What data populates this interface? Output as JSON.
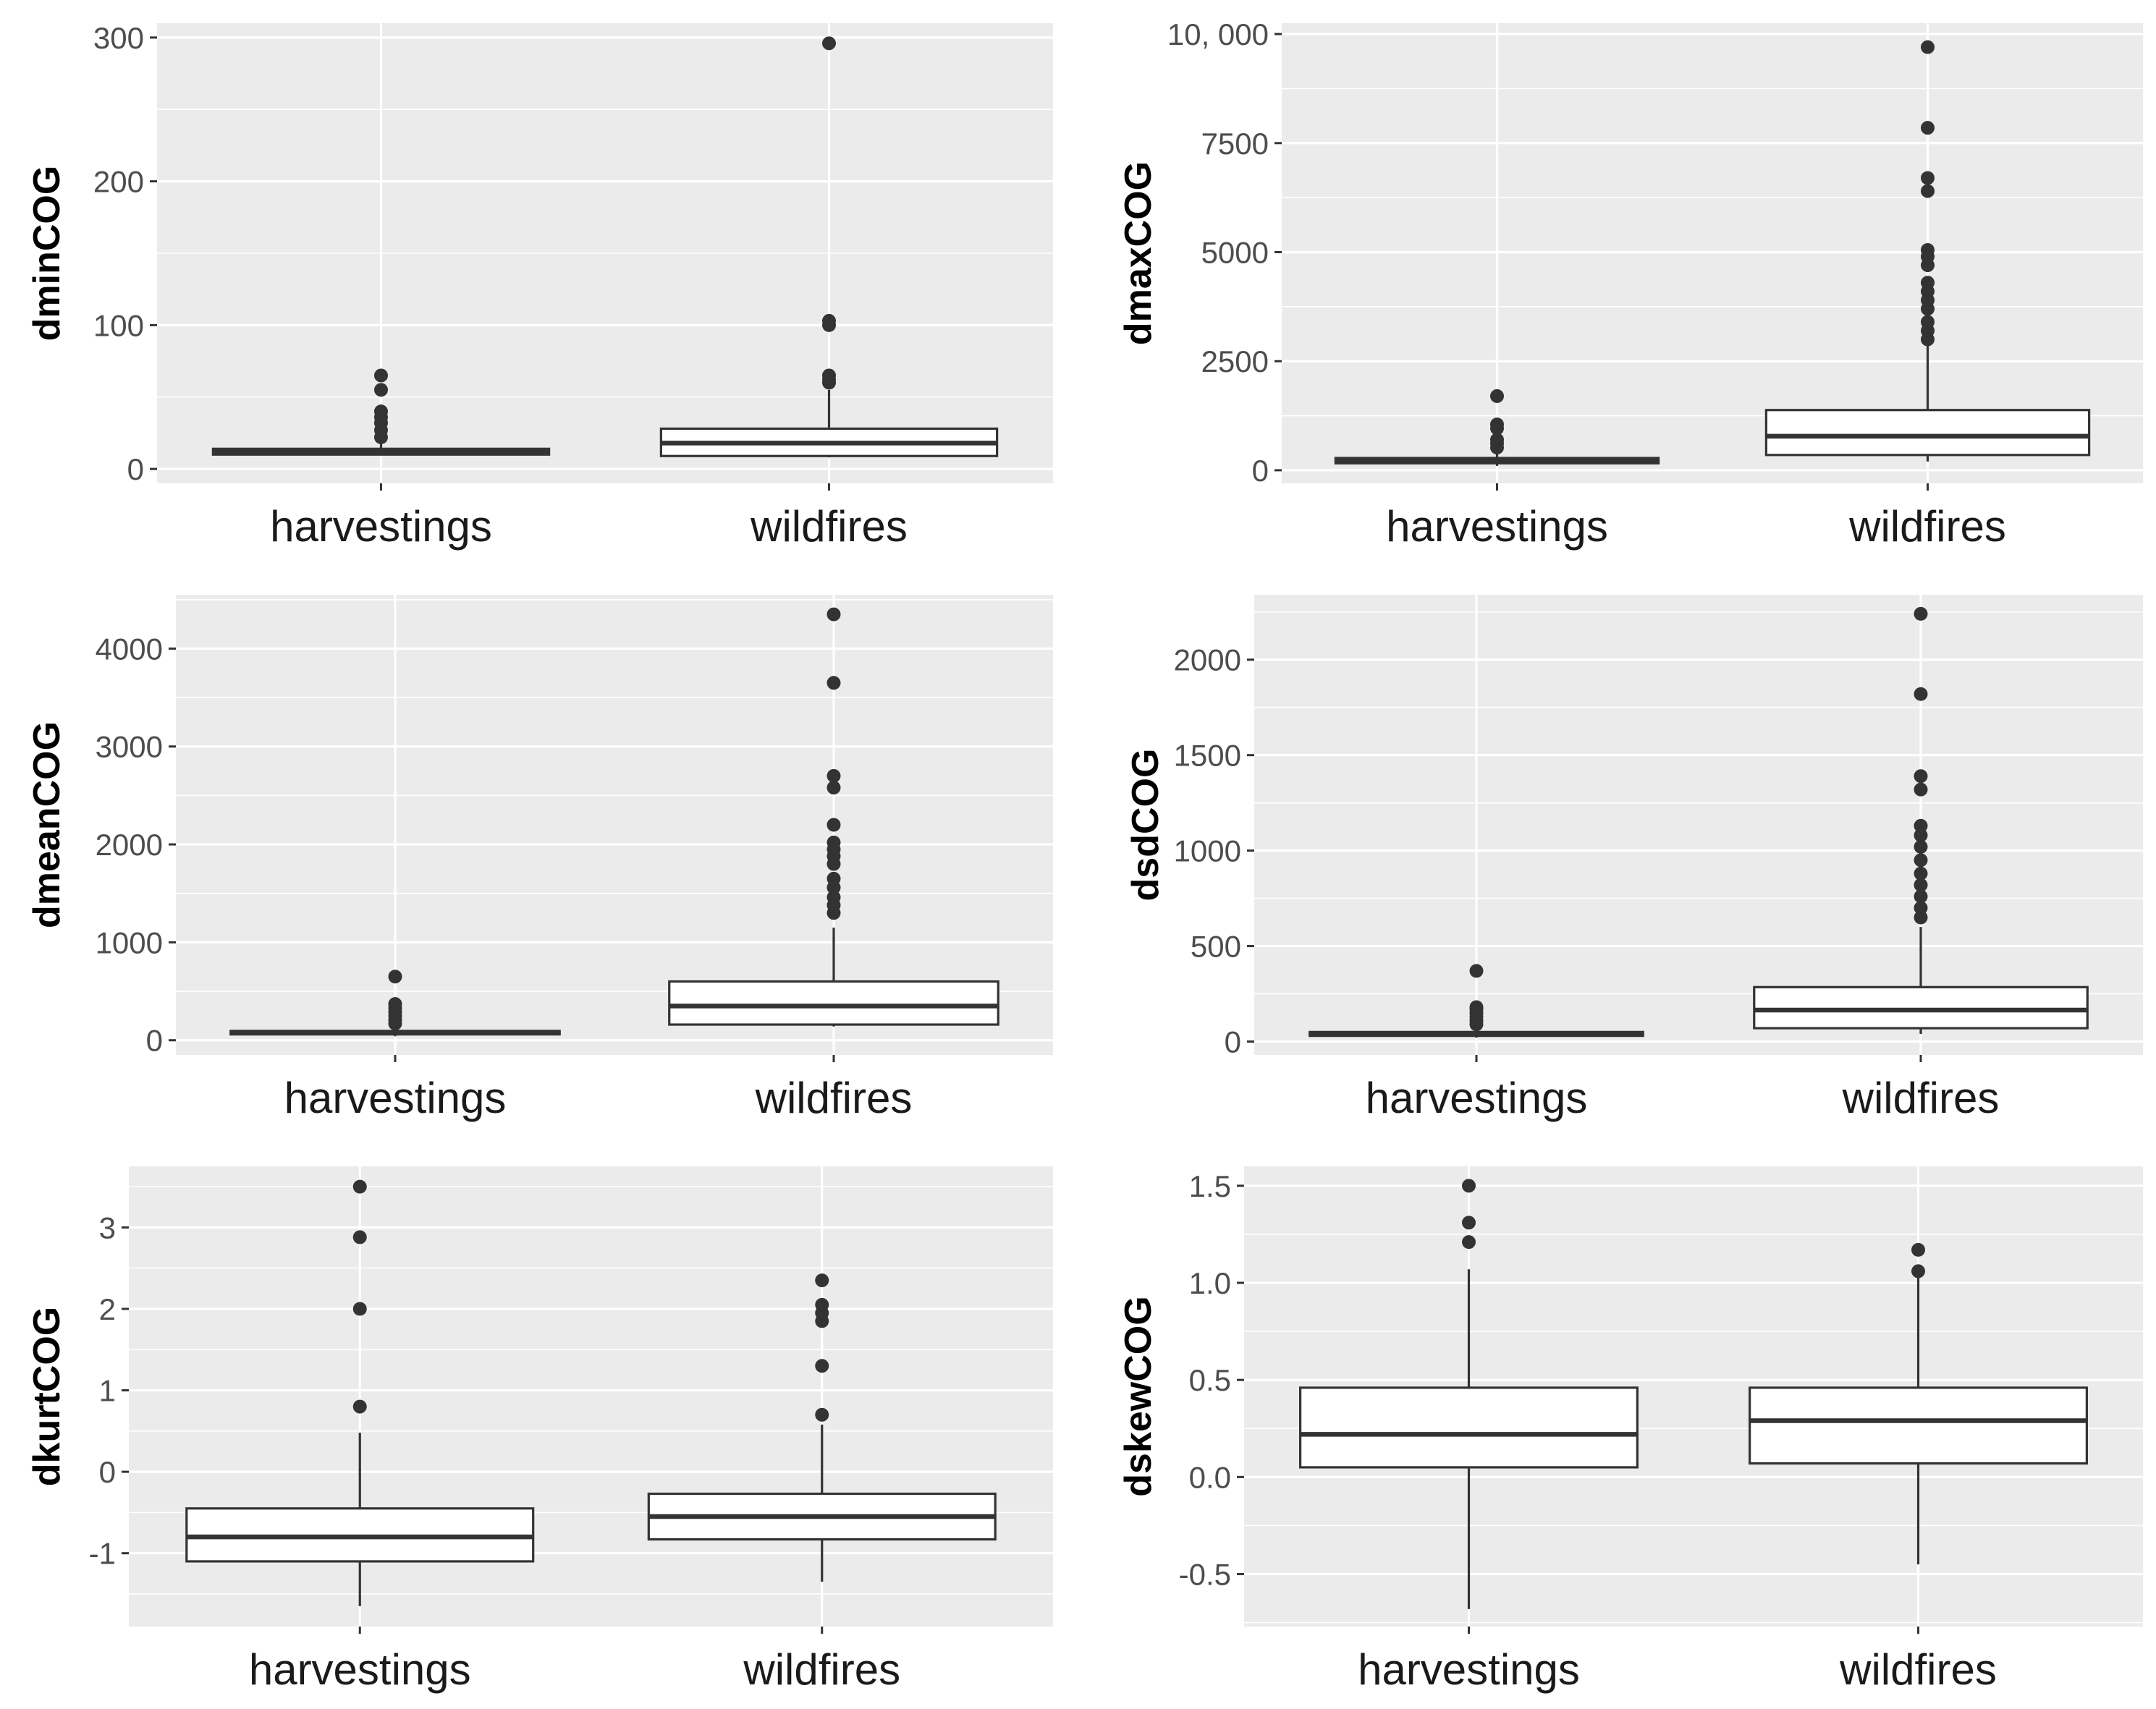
{
  "colors": {
    "panel_background": "#ebebeb",
    "grid_major": "#ffffff",
    "box_fill": "#ffffff",
    "box_stroke": "#333333",
    "outlier": "#333333"
  },
  "chart_data": [
    {
      "type": "boxplot",
      "ylabel": "dminCOG",
      "categories": [
        "harvestings",
        "wildfires"
      ],
      "yticks": [
        0,
        100,
        200,
        300
      ],
      "ytick_labels": [
        "0",
        "100",
        "200",
        "300"
      ],
      "ylim": [
        -10,
        310
      ],
      "grid": true,
      "boxes": [
        {
          "category": "harvestings",
          "min": 10,
          "q1": 10,
          "median": 12,
          "q3": 14,
          "max": 18,
          "outliers": [
            22,
            27,
            32,
            36,
            40,
            55,
            65
          ]
        },
        {
          "category": "wildfires",
          "min": 8,
          "q1": 9,
          "median": 18,
          "q3": 28,
          "max": 55,
          "outliers": [
            60,
            62,
            65,
            100,
            103,
            296
          ]
        }
      ]
    },
    {
      "type": "boxplot",
      "ylabel": "dmaxCOG",
      "categories": [
        "harvestings",
        "wildfires"
      ],
      "yticks": [
        0,
        2500,
        5000,
        7500,
        10000
      ],
      "ytick_labels": [
        "0",
        "2500",
        "5000",
        "7500",
        "10, 000"
      ],
      "ylim": [
        -300,
        10250
      ],
      "grid": true,
      "boxes": [
        {
          "category": "harvestings",
          "min": 100,
          "q1": 160,
          "median": 220,
          "q3": 280,
          "max": 430,
          "outliers": [
            520,
            620,
            700,
            960,
            1050,
            1700
          ]
        },
        {
          "category": "wildfires",
          "min": 200,
          "q1": 350,
          "median": 780,
          "q3": 1380,
          "max": 2900,
          "outliers": [
            3000,
            3200,
            3400,
            3700,
            3900,
            4100,
            4300,
            4700,
            4900,
            5050,
            6400,
            6700,
            7850,
            9700
          ]
        }
      ]
    },
    {
      "type": "boxplot",
      "ylabel": "dmeanCOG",
      "categories": [
        "harvestings",
        "wildfires"
      ],
      "yticks": [
        0,
        1000,
        2000,
        3000,
        4000
      ],
      "ytick_labels": [
        "0",
        "1000",
        "2000",
        "3000",
        "4000"
      ],
      "ylim": [
        -150,
        4550
      ],
      "grid": true,
      "boxes": [
        {
          "category": "harvestings",
          "min": 40,
          "q1": 60,
          "median": 75,
          "q3": 95,
          "max": 140,
          "outliers": [
            170,
            210,
            250,
            290,
            330,
            370,
            650
          ]
        },
        {
          "category": "wildfires",
          "min": 140,
          "q1": 160,
          "median": 350,
          "q3": 600,
          "max": 1150,
          "outliers": [
            1300,
            1380,
            1460,
            1560,
            1650,
            1800,
            1880,
            1950,
            2020,
            2200,
            2580,
            2700,
            3650,
            4350
          ]
        }
      ]
    },
    {
      "type": "boxplot",
      "ylabel": "dsdCOG",
      "categories": [
        "harvestings",
        "wildfires"
      ],
      "yticks": [
        0,
        500,
        1000,
        1500,
        2000
      ],
      "ytick_labels": [
        "0",
        "500",
        "1000",
        "1500",
        "2000"
      ],
      "ylim": [
        -70,
        2340
      ],
      "grid": true,
      "boxes": [
        {
          "category": "harvestings",
          "min": 20,
          "q1": 30,
          "median": 40,
          "q3": 50,
          "max": 70,
          "outliers": [
            90,
            110,
            130,
            150,
            170,
            180,
            370
          ]
        },
        {
          "category": "wildfires",
          "min": 40,
          "q1": 70,
          "median": 165,
          "q3": 285,
          "max": 600,
          "outliers": [
            650,
            700,
            760,
            820,
            880,
            950,
            1020,
            1080,
            1130,
            1320,
            1390,
            1820,
            2240
          ]
        }
      ]
    },
    {
      "type": "boxplot",
      "ylabel": "dkurtCOG",
      "categories": [
        "harvestings",
        "wildfires"
      ],
      "yticks": [
        -1,
        0,
        1,
        2,
        3
      ],
      "ytick_labels": [
        "-1",
        "0",
        "1",
        "2",
        "3"
      ],
      "ylim": [
        -1.9,
        3.75
      ],
      "grid": true,
      "boxes": [
        {
          "category": "harvestings",
          "min": -1.65,
          "q1": -1.1,
          "median": -0.8,
          "q3": -0.45,
          "max": 0.48,
          "outliers": [
            0.8,
            2.0,
            2.88,
            3.5
          ]
        },
        {
          "category": "wildfires",
          "min": -1.35,
          "q1": -0.83,
          "median": -0.55,
          "q3": -0.27,
          "max": 0.58,
          "outliers": [
            0.7,
            1.3,
            1.85,
            1.95,
            2.05,
            2.35
          ]
        }
      ]
    },
    {
      "type": "boxplot",
      "ylabel": "dskewCOG",
      "categories": [
        "harvestings",
        "wildfires"
      ],
      "yticks": [
        -0.5,
        0.0,
        0.5,
        1.0,
        1.5
      ],
      "ytick_labels": [
        "-0.5",
        "0.0",
        "0.5",
        "1.0",
        "1.5"
      ],
      "ylim": [
        -0.77,
        1.6
      ],
      "grid": true,
      "boxes": [
        {
          "category": "harvestings",
          "min": -0.68,
          "q1": 0.05,
          "median": 0.22,
          "q3": 0.46,
          "max": 1.07,
          "outliers": [
            1.21,
            1.31,
            1.5
          ]
        },
        {
          "category": "wildfires",
          "min": -0.45,
          "q1": 0.07,
          "median": 0.29,
          "q3": 0.46,
          "max": 1.03,
          "outliers": [
            1.06,
            1.17
          ]
        }
      ]
    }
  ]
}
